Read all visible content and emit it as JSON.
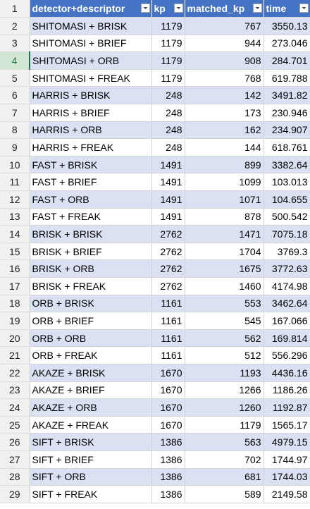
{
  "header": {
    "row_number": "1",
    "columns": [
      "detector+descriptor",
      "kp",
      "matched_kp",
      "time"
    ],
    "filter_icon": "filter-dropdown-icon"
  },
  "active_row_number": "4",
  "colors": {
    "header_bg": "#4472c4",
    "band_bg": "#d9e1f2",
    "active_row_header": "#d3e6d6",
    "active_accent": "#217346"
  },
  "rows": [
    {
      "num": "2",
      "det": "SHITOMASI + BRISK",
      "kp": "1179",
      "mkp": "767",
      "time": "3550.13"
    },
    {
      "num": "3",
      "det": "SHITOMASI + BRIEF",
      "kp": "1179",
      "mkp": "944",
      "time": "273.046"
    },
    {
      "num": "4",
      "det": "SHITOMASI + ORB",
      "kp": "1179",
      "mkp": "908",
      "time": "284.701"
    },
    {
      "num": "5",
      "det": "SHITOMASI + FREAK",
      "kp": "1179",
      "mkp": "768",
      "time": "619.788"
    },
    {
      "num": "6",
      "det": "HARRIS + BRISK",
      "kp": "248",
      "mkp": "142",
      "time": "3491.82"
    },
    {
      "num": "7",
      "det": "HARRIS + BRIEF",
      "kp": "248",
      "mkp": "173",
      "time": "230.946"
    },
    {
      "num": "8",
      "det": "HARRIS + ORB",
      "kp": "248",
      "mkp": "162",
      "time": "234.907"
    },
    {
      "num": "9",
      "det": "HARRIS + FREAK",
      "kp": "248",
      "mkp": "144",
      "time": "618.761"
    },
    {
      "num": "10",
      "det": "FAST + BRISK",
      "kp": "1491",
      "mkp": "899",
      "time": "3382.64"
    },
    {
      "num": "11",
      "det": "FAST + BRIEF",
      "kp": "1491",
      "mkp": "1099",
      "time": "103.013"
    },
    {
      "num": "12",
      "det": "FAST + ORB",
      "kp": "1491",
      "mkp": "1071",
      "time": "104.655"
    },
    {
      "num": "13",
      "det": "FAST + FREAK",
      "kp": "1491",
      "mkp": "878",
      "time": "500.542"
    },
    {
      "num": "14",
      "det": "BRISK + BRISK",
      "kp": "2762",
      "mkp": "1471",
      "time": "7075.18"
    },
    {
      "num": "15",
      "det": "BRISK + BRIEF",
      "kp": "2762",
      "mkp": "1704",
      "time": "3769.3"
    },
    {
      "num": "16",
      "det": "BRISK + ORB",
      "kp": "2762",
      "mkp": "1675",
      "time": "3772.63"
    },
    {
      "num": "17",
      "det": "BRISK + FREAK",
      "kp": "2762",
      "mkp": "1460",
      "time": "4174.98"
    },
    {
      "num": "18",
      "det": "ORB + BRISK",
      "kp": "1161",
      "mkp": "553",
      "time": "3462.64"
    },
    {
      "num": "19",
      "det": "ORB + BRIEF",
      "kp": "1161",
      "mkp": "545",
      "time": "167.066"
    },
    {
      "num": "20",
      "det": "ORB + ORB",
      "kp": "1161",
      "mkp": "562",
      "time": "169.814"
    },
    {
      "num": "21",
      "det": "ORB + FREAK",
      "kp": "1161",
      "mkp": "512",
      "time": "556.296"
    },
    {
      "num": "22",
      "det": "AKAZE + BRISK",
      "kp": "1670",
      "mkp": "1193",
      "time": "4436.16"
    },
    {
      "num": "23",
      "det": "AKAZE + BRIEF",
      "kp": "1670",
      "mkp": "1266",
      "time": "1186.26"
    },
    {
      "num": "24",
      "det": "AKAZE + ORB",
      "kp": "1670",
      "mkp": "1260",
      "time": "1192.87"
    },
    {
      "num": "25",
      "det": "AKAZE + FREAK",
      "kp": "1670",
      "mkp": "1179",
      "time": "1565.17"
    },
    {
      "num": "26",
      "det": "SIFT + BRISK",
      "kp": "1386",
      "mkp": "563",
      "time": "4979.15"
    },
    {
      "num": "27",
      "det": "SIFT + BRIEF",
      "kp": "1386",
      "mkp": "702",
      "time": "1744.97"
    },
    {
      "num": "28",
      "det": "SIFT + ORB",
      "kp": "1386",
      "mkp": "681",
      "time": "1744.03"
    },
    {
      "num": "29",
      "det": "SIFT + FREAK",
      "kp": "1386",
      "mkp": "589",
      "time": "2149.58"
    }
  ]
}
